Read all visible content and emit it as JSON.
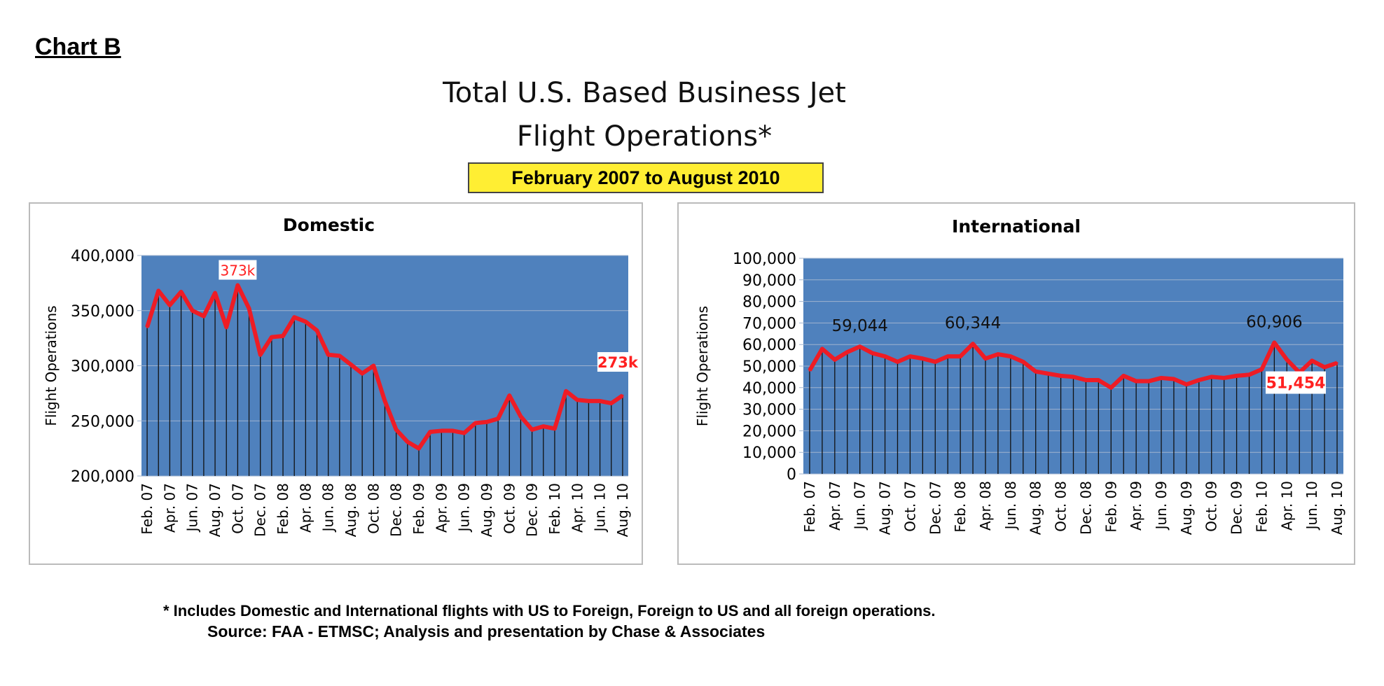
{
  "header": {
    "chart_label": "Chart B",
    "title_line1": "Total U.S. Based Business Jet",
    "title_line2": "Flight Operations*",
    "date_range": "February 2007 to August 2010"
  },
  "footer": {
    "note": "* Includes Domestic and International flights with US to Foreign, Foreign to US and all foreign operations.",
    "source": "Source: FAA  - ETMSC; Analysis and presentation by Chase & Associates"
  },
  "colors": {
    "plot_bg": "#4f81bd",
    "line": "#ee1c25",
    "highlight": "#ff2020",
    "title_box": "#ffee33"
  },
  "chart_data": [
    {
      "type": "line",
      "title": "Domestic",
      "ylabel": "Flight Operations",
      "xlabel": "",
      "ylim": [
        200000,
        400000
      ],
      "yticks": [
        200000,
        250000,
        300000,
        350000,
        400000
      ],
      "ytick_labels": [
        "200,000",
        "250,000",
        "300,000",
        "350,000",
        "400,000"
      ],
      "grid": true,
      "x": [
        "Feb. 07",
        "Mar. 07",
        "Apr. 07",
        "May 07",
        "Jun. 07",
        "Jul. 07",
        "Aug. 07",
        "Sep. 07",
        "Oct. 07",
        "Nov. 07",
        "Dec. 07",
        "Jan. 08",
        "Feb. 08",
        "Mar. 08",
        "Apr. 08",
        "May 08",
        "Jun. 08",
        "Jul. 08",
        "Aug. 08",
        "Sep. 08",
        "Oct. 08",
        "Nov. 08",
        "Dec. 08",
        "Jan. 09",
        "Feb. 09",
        "Mar. 09",
        "Apr. 09",
        "May 09",
        "Jun. 09",
        "Jul. 09",
        "Aug. 09",
        "Sep. 09",
        "Oct. 09",
        "Nov. 09",
        "Dec. 09",
        "Jan. 10",
        "Feb. 10",
        "Mar. 10",
        "Apr. 10",
        "May 10",
        "Jun. 10",
        "Jul. 10",
        "Aug. 10"
      ],
      "values": [
        335000,
        368000,
        355000,
        367000,
        350000,
        345000,
        366000,
        335000,
        373000,
        352000,
        310000,
        326000,
        327000,
        344000,
        340000,
        332000,
        310000,
        309000,
        301000,
        293000,
        300000,
        268000,
        242000,
        231000,
        225000,
        240000,
        241000,
        241000,
        239000,
        248000,
        249000,
        252000,
        273000,
        254000,
        242000,
        245000,
        243000,
        277000,
        269000,
        268000,
        268000,
        266000,
        273000
      ],
      "annotations": [
        {
          "index": 8,
          "text": "373k",
          "style": "boxed"
        },
        {
          "index": 42,
          "text": "273k",
          "style": "bold"
        }
      ]
    },
    {
      "type": "line",
      "title": "International",
      "ylabel": "Flight Operations",
      "xlabel": "",
      "ylim": [
        0,
        100000
      ],
      "yticks": [
        0,
        10000,
        20000,
        30000,
        40000,
        50000,
        60000,
        70000,
        80000,
        90000,
        100000
      ],
      "ytick_labels": [
        "0",
        "10,000",
        "20,000",
        "30,000",
        "40,000",
        "50,000",
        "60,000",
        "70,000",
        "80,000",
        "90,000",
        "100,000"
      ],
      "grid": true,
      "x": [
        "Feb. 07",
        "Mar. 07",
        "Apr. 07",
        "May 07",
        "Jun. 07",
        "Jul. 07",
        "Aug. 07",
        "Sep. 07",
        "Oct. 07",
        "Nov. 07",
        "Dec. 07",
        "Jan. 08",
        "Feb. 08",
        "Mar. 08",
        "Apr. 08",
        "May 08",
        "Jun. 08",
        "Jul. 08",
        "Aug. 08",
        "Sep. 08",
        "Oct. 08",
        "Nov. 08",
        "Dec. 08",
        "Jan. 09",
        "Feb. 09",
        "Mar. 09",
        "Apr. 09",
        "May 09",
        "Jun. 09",
        "Jul. 09",
        "Aug. 09",
        "Sep. 09",
        "Oct. 09",
        "Nov. 09",
        "Dec. 09",
        "Jan. 10",
        "Feb. 10",
        "Mar. 10",
        "Apr. 10",
        "May 10",
        "Jun. 10",
        "Jul. 10",
        "Aug. 10"
      ],
      "values": [
        48000,
        58000,
        53000,
        56500,
        59044,
        56000,
        54500,
        52000,
        54500,
        53500,
        52000,
        54500,
        54500,
        60344,
        53500,
        55500,
        54500,
        52000,
        47500,
        46500,
        45500,
        45000,
        43500,
        43500,
        40000,
        45500,
        43000,
        43000,
        44500,
        44000,
        41500,
        43500,
        45000,
        44500,
        45500,
        46000,
        48500,
        60906,
        53000,
        47000,
        52500,
        49500,
        51454
      ],
      "annotations": [
        {
          "index": 4,
          "text": "59,044",
          "style": "plain"
        },
        {
          "index": 13,
          "text": "60,344",
          "style": "plain"
        },
        {
          "index": 37,
          "text": "60,906",
          "style": "plain"
        },
        {
          "index": 42,
          "text": "51,454",
          "style": "boxed-bold"
        }
      ]
    }
  ]
}
